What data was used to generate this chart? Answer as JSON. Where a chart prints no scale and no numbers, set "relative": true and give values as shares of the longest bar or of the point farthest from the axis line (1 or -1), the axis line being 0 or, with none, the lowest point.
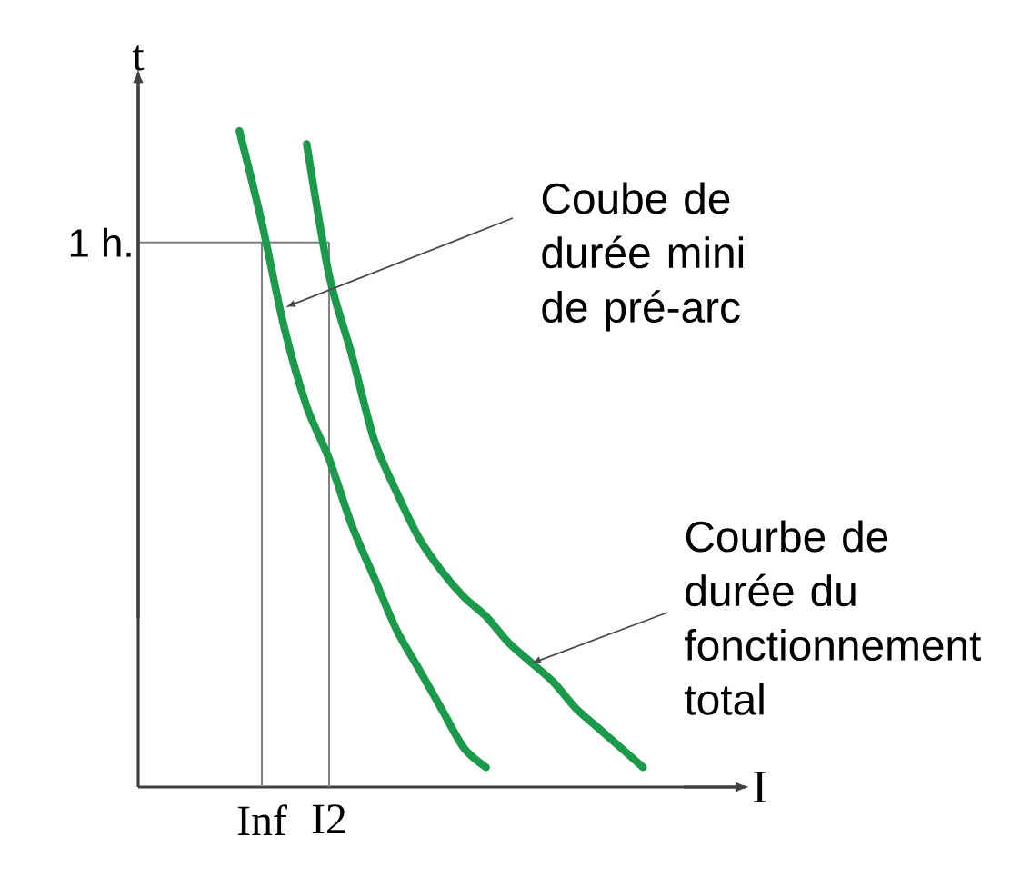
{
  "chart_data": {
    "type": "line",
    "relative": true,
    "xlabel": "I",
    "ylabel": "t",
    "categories": [
      null,
      "Inf",
      null,
      null,
      "I2",
      null,
      null,
      null,
      null,
      null,
      null,
      null,
      null,
      null,
      null,
      null,
      null,
      null,
      null
    ],
    "series": [
      {
        "color": "#1a9a4a",
        "values": [
          1.0,
          0.86,
          0.7,
          0.58,
          0.5,
          0.4,
          0.32,
          0.24,
          0.18,
          0.12,
          0.06,
          0.03,
          null,
          null,
          null,
          null,
          null,
          null,
          null
        ]
      },
      {
        "color": "#1a9a4a",
        "values": [
          null,
          null,
          null,
          0.98,
          0.78,
          0.66,
          0.53,
          0.45,
          0.38,
          0.33,
          0.29,
          0.26,
          0.22,
          0.19,
          0.16,
          0.12,
          0.09,
          0.06,
          0.03
        ]
      }
    ],
    "grid": "x",
    "ref_lines": [
      {
        "axis": "y",
        "value": 0.83,
        "label": "1 h."
      }
    ],
    "annotations": [
      "Coube de durée mini de pré-arc",
      "Courbe de durée du fonctionnement total"
    ]
  }
}
